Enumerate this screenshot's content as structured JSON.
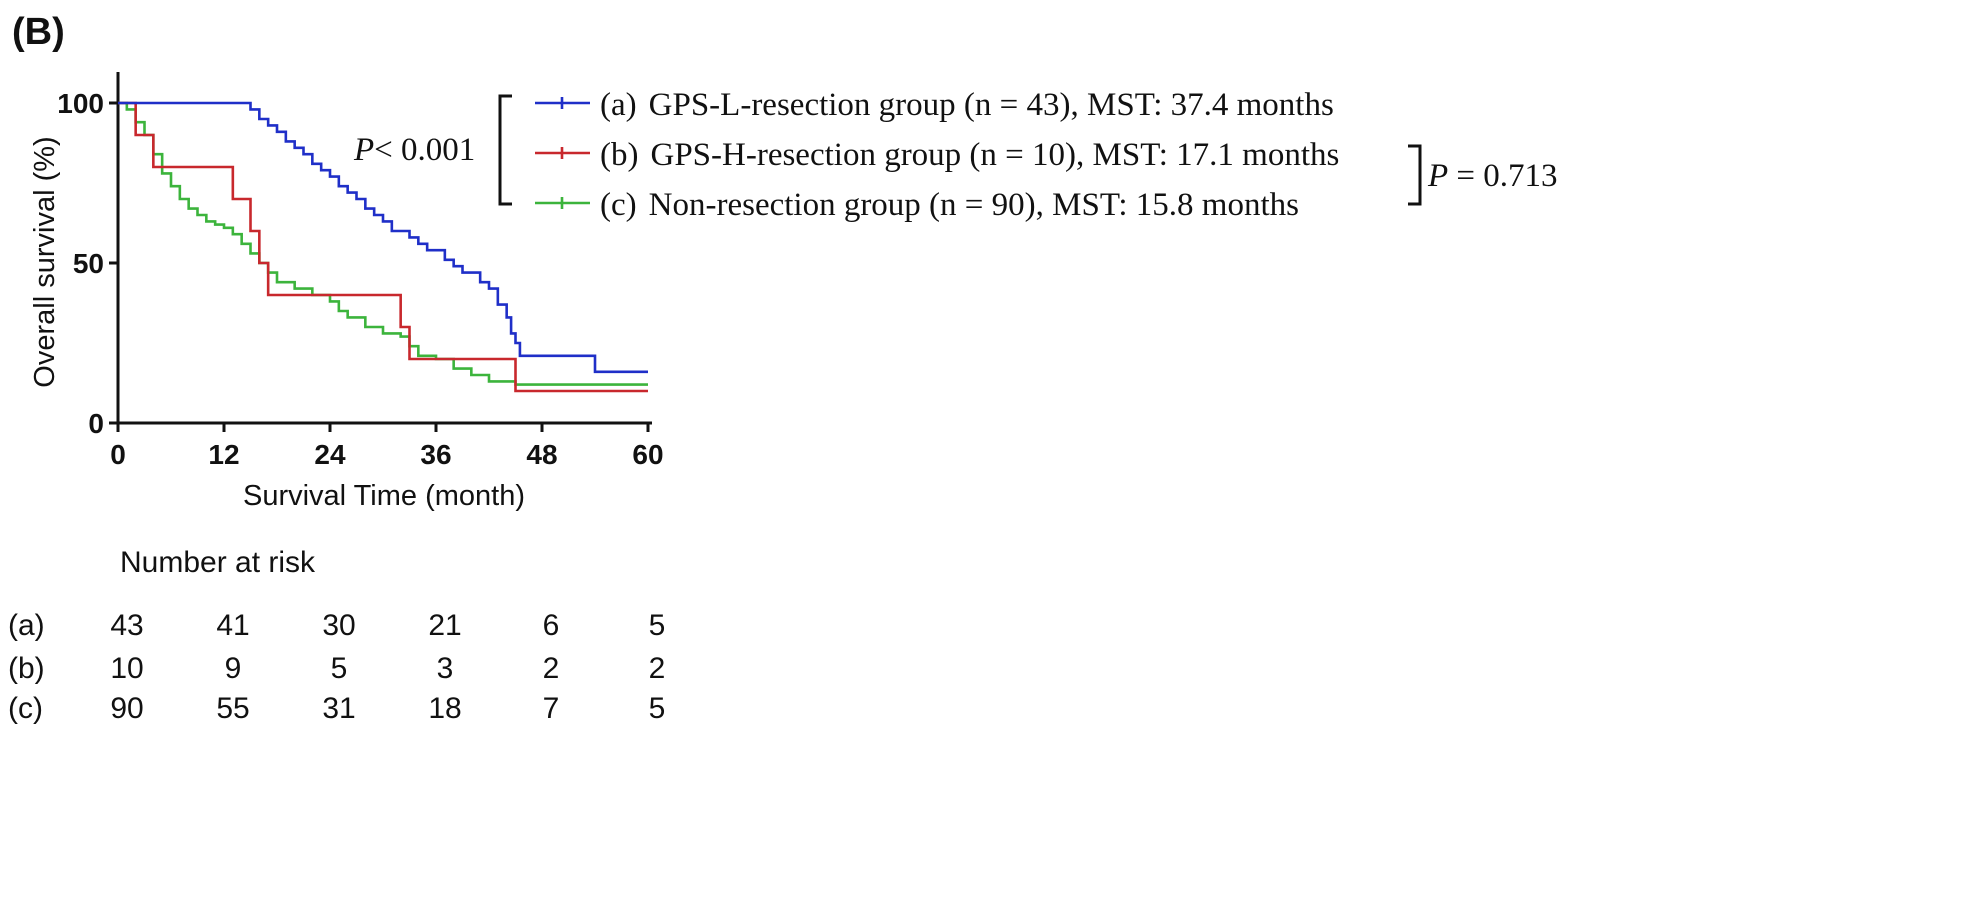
{
  "panel_label": "(B)",
  "chart_data": {
    "type": "line",
    "title": "",
    "xlabel": "Survival Time (month)",
    "ylabel": "Overall survival (%)",
    "xlim": [
      0,
      60
    ],
    "ylim": [
      0,
      100
    ],
    "x_ticks": [
      "0",
      "12",
      "24",
      "36",
      "48",
      "60"
    ],
    "y_ticks": [
      "0",
      "50",
      "100"
    ],
    "series": [
      {
        "name": "(a)",
        "label": "GPS-L-resection group (n  = 43), MST: 37.4 months",
        "color": "#1f2fc8",
        "points": [
          [
            0,
            100
          ],
          [
            14,
            100
          ],
          [
            15,
            98
          ],
          [
            16,
            95
          ],
          [
            17,
            93
          ],
          [
            18,
            91
          ],
          [
            19,
            88
          ],
          [
            20,
            86
          ],
          [
            21,
            84
          ],
          [
            22,
            81
          ],
          [
            23,
            79
          ],
          [
            24,
            77
          ],
          [
            25,
            74
          ],
          [
            26,
            72
          ],
          [
            27,
            70
          ],
          [
            28,
            67
          ],
          [
            29,
            65
          ],
          [
            30,
            63
          ],
          [
            31,
            60
          ],
          [
            33,
            58
          ],
          [
            34,
            56
          ],
          [
            35,
            54
          ],
          [
            37,
            51
          ],
          [
            38,
            49
          ],
          [
            39,
            47
          ],
          [
            41,
            44
          ],
          [
            42,
            42
          ],
          [
            43,
            37
          ],
          [
            44,
            33
          ],
          [
            44.5,
            28
          ],
          [
            45,
            25
          ],
          [
            45.5,
            21
          ],
          [
            54,
            21
          ],
          [
            54,
            16
          ],
          [
            60,
            16
          ]
        ]
      },
      {
        "name": "(b)",
        "label": "GPS-H-resection group (n  = 10), MST: 17.1 months",
        "color": "#c8282d",
        "points": [
          [
            0,
            100
          ],
          [
            2,
            100
          ],
          [
            2,
            90
          ],
          [
            4,
            90
          ],
          [
            4,
            80
          ],
          [
            13,
            80
          ],
          [
            13,
            70
          ],
          [
            15,
            70
          ],
          [
            15,
            60
          ],
          [
            16,
            60
          ],
          [
            16,
            50
          ],
          [
            17,
            50
          ],
          [
            17,
            40
          ],
          [
            32,
            40
          ],
          [
            32,
            30
          ],
          [
            33,
            30
          ],
          [
            33,
            20
          ],
          [
            45,
            20
          ],
          [
            45,
            10
          ],
          [
            60,
            10
          ]
        ]
      },
      {
        "name": "(c)",
        "label": "Non-resection group (n = 90), MST: 15.8 months",
        "color": "#3cb43c",
        "points": [
          [
            0,
            100
          ],
          [
            1,
            98
          ],
          [
            2,
            94
          ],
          [
            3,
            90
          ],
          [
            4,
            84
          ],
          [
            5,
            78
          ],
          [
            6,
            74
          ],
          [
            7,
            70
          ],
          [
            8,
            67
          ],
          [
            9,
            65
          ],
          [
            10,
            63
          ],
          [
            11,
            62
          ],
          [
            12,
            61
          ],
          [
            13,
            59
          ],
          [
            14,
            56
          ],
          [
            15,
            53
          ],
          [
            16,
            50
          ],
          [
            17,
            47
          ],
          [
            18,
            44
          ],
          [
            20,
            42
          ],
          [
            22,
            40
          ],
          [
            24,
            38
          ],
          [
            25,
            35
          ],
          [
            26,
            33
          ],
          [
            28,
            30
          ],
          [
            30,
            28
          ],
          [
            32,
            27
          ],
          [
            33,
            24
          ],
          [
            34,
            21
          ],
          [
            36,
            20
          ],
          [
            38,
            17
          ],
          [
            40,
            15
          ],
          [
            42,
            13
          ],
          [
            45,
            12
          ],
          [
            48,
            12
          ],
          [
            60,
            12
          ]
        ]
      }
    ],
    "p_values": [
      {
        "prefix": "P",
        "text": "< 0.001",
        "compares": "(a) vs (b),(c)"
      },
      {
        "prefix": "P",
        "text": " = 0.713",
        "compares": "(b) vs (c)"
      }
    ]
  },
  "risk_table": {
    "title": "Number at risk",
    "rows": [
      {
        "label": "(a)",
        "values": [
          "43",
          "41",
          "30",
          "21",
          "6",
          "5"
        ]
      },
      {
        "label": "(b)",
        "values": [
          "10",
          "9",
          "5",
          "3",
          "2",
          "2"
        ]
      },
      {
        "label": "(c)",
        "values": [
          "90",
          "55",
          "31",
          "18",
          "7",
          "5"
        ]
      }
    ]
  }
}
